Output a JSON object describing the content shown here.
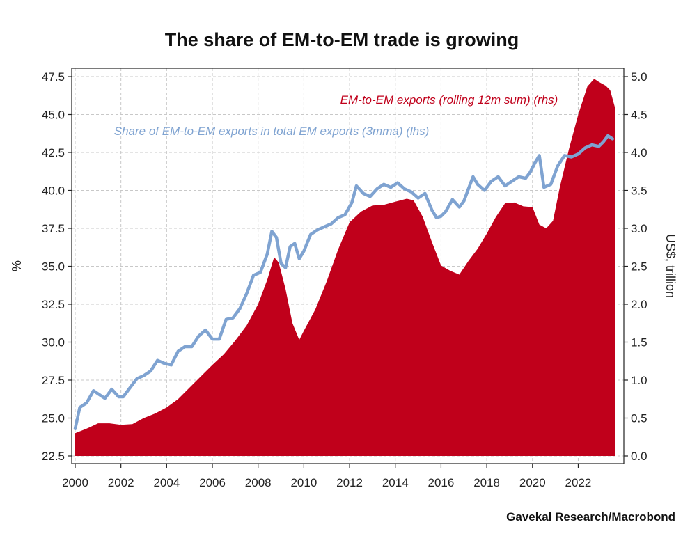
{
  "chart_data": {
    "type": "area",
    "title": "The share of EM-to-EM trade is growing",
    "ylabel_left": "%",
    "ylabel_right": "US$, trillion",
    "source": "Gavekal Research/Macrobond",
    "xlim": [
      2000,
      2023.6
    ],
    "ylim_left": [
      22.5,
      47.5
    ],
    "ylim_right": [
      0.0,
      5.0
    ],
    "x_ticks": [
      "2000",
      "2002",
      "2004",
      "2006",
      "2008",
      "2010",
      "2012",
      "2014",
      "2016",
      "2018",
      "2020",
      "2022"
    ],
    "y_left_ticks": [
      "22.5",
      "25.0",
      "27.5",
      "30.0",
      "32.5",
      "35.0",
      "37.5",
      "40.0",
      "42.5",
      "45.0",
      "47.5"
    ],
    "y_right_ticks": [
      "0.0",
      "0.5",
      "1.0",
      "1.5",
      "2.0",
      "2.5",
      "3.0",
      "3.5",
      "4.0",
      "4.5",
      "5.0"
    ],
    "grid": true,
    "colors": {
      "area": "#c0001b",
      "line": "#7fa3d1"
    },
    "series": [
      {
        "name": "EM-to-EM exports (rolling 12m sum) (rhs)",
        "axis": "right",
        "kind": "area",
        "x": [
          2000,
          2000.5,
          2001,
          2001.5,
          2002,
          2002.5,
          2003,
          2003.5,
          2004,
          2004.5,
          2005,
          2005.5,
          2006,
          2006.5,
          2007,
          2007.5,
          2008,
          2008.4,
          2008.7,
          2008.9,
          2009.2,
          2009.5,
          2009.8,
          2010,
          2010.5,
          2011,
          2011.5,
          2012,
          2012.5,
          2013,
          2013.5,
          2014,
          2014.5,
          2014.8,
          2015.2,
          2015.6,
          2016,
          2016.4,
          2016.8,
          2017.2,
          2017.6,
          2018,
          2018.4,
          2018.8,
          2019.2,
          2019.6,
          2020,
          2020.3,
          2020.6,
          2020.9,
          2021.2,
          2021.6,
          2022,
          2022.4,
          2022.7,
          2022.9,
          2023.2,
          2023.4,
          2023.6
        ],
        "values": [
          0.3,
          0.36,
          0.43,
          0.43,
          0.41,
          0.42,
          0.5,
          0.56,
          0.64,
          0.75,
          0.9,
          1.05,
          1.2,
          1.34,
          1.52,
          1.72,
          2.0,
          2.32,
          2.62,
          2.55,
          2.2,
          1.75,
          1.53,
          1.65,
          1.93,
          2.3,
          2.72,
          3.08,
          3.22,
          3.3,
          3.31,
          3.35,
          3.39,
          3.37,
          3.15,
          2.82,
          2.51,
          2.44,
          2.39,
          2.57,
          2.73,
          2.93,
          3.15,
          3.33,
          3.34,
          3.29,
          3.28,
          3.05,
          3.0,
          3.1,
          3.55,
          4.05,
          4.5,
          4.87,
          4.97,
          4.93,
          4.88,
          4.82,
          4.6
        ]
      },
      {
        "name": "Share of EM-to-EM exports in total EM exports (3mma) (lhs)",
        "axis": "left",
        "kind": "line",
        "x": [
          2000,
          2000.2,
          2000.5,
          2000.8,
          2001,
          2001.3,
          2001.6,
          2001.9,
          2002.1,
          2002.4,
          2002.7,
          2003,
          2003.3,
          2003.6,
          2003.9,
          2004.2,
          2004.5,
          2004.8,
          2005.1,
          2005.4,
          2005.7,
          2006,
          2006.3,
          2006.6,
          2006.9,
          2007.2,
          2007.5,
          2007.8,
          2008.1,
          2008.4,
          2008.6,
          2008.8,
          2009,
          2009.2,
          2009.4,
          2009.6,
          2009.8,
          2010,
          2010.3,
          2010.6,
          2010.9,
          2011.2,
          2011.5,
          2011.8,
          2012.1,
          2012.3,
          2012.6,
          2012.9,
          2013.2,
          2013.5,
          2013.8,
          2014.1,
          2014.4,
          2014.7,
          2015,
          2015.3,
          2015.6,
          2015.8,
          2016,
          2016.2,
          2016.5,
          2016.8,
          2017,
          2017.2,
          2017.4,
          2017.6,
          2017.9,
          2018.2,
          2018.5,
          2018.8,
          2019.1,
          2019.4,
          2019.7,
          2019.9,
          2020.1,
          2020.3,
          2020.5,
          2020.8,
          2021.1,
          2021.4,
          2021.7,
          2022,
          2022.3,
          2022.6,
          2022.9,
          2023.1,
          2023.3,
          2023.5
        ],
        "values": [
          24.3,
          25.7,
          26.0,
          26.8,
          26.6,
          26.3,
          26.9,
          26.4,
          26.4,
          27.0,
          27.6,
          27.8,
          28.1,
          28.8,
          28.6,
          28.5,
          29.4,
          29.7,
          29.7,
          30.4,
          30.8,
          30.2,
          30.2,
          31.5,
          31.6,
          32.2,
          33.2,
          34.4,
          34.6,
          35.8,
          37.3,
          36.9,
          35.2,
          34.9,
          36.3,
          36.5,
          35.5,
          36.0,
          37.1,
          37.4,
          37.6,
          37.8,
          38.2,
          38.4,
          39.2,
          40.3,
          39.8,
          39.6,
          40.1,
          40.4,
          40.2,
          40.5,
          40.1,
          39.9,
          39.5,
          39.8,
          38.7,
          38.2,
          38.3,
          38.6,
          39.4,
          38.9,
          39.3,
          40.1,
          40.9,
          40.4,
          40.0,
          40.6,
          40.9,
          40.3,
          40.6,
          40.9,
          40.8,
          41.2,
          41.8,
          42.3,
          40.2,
          40.4,
          41.6,
          42.3,
          42.2,
          42.4,
          42.8,
          43.0,
          42.9,
          43.2,
          43.6,
          43.4
        ]
      }
    ]
  }
}
